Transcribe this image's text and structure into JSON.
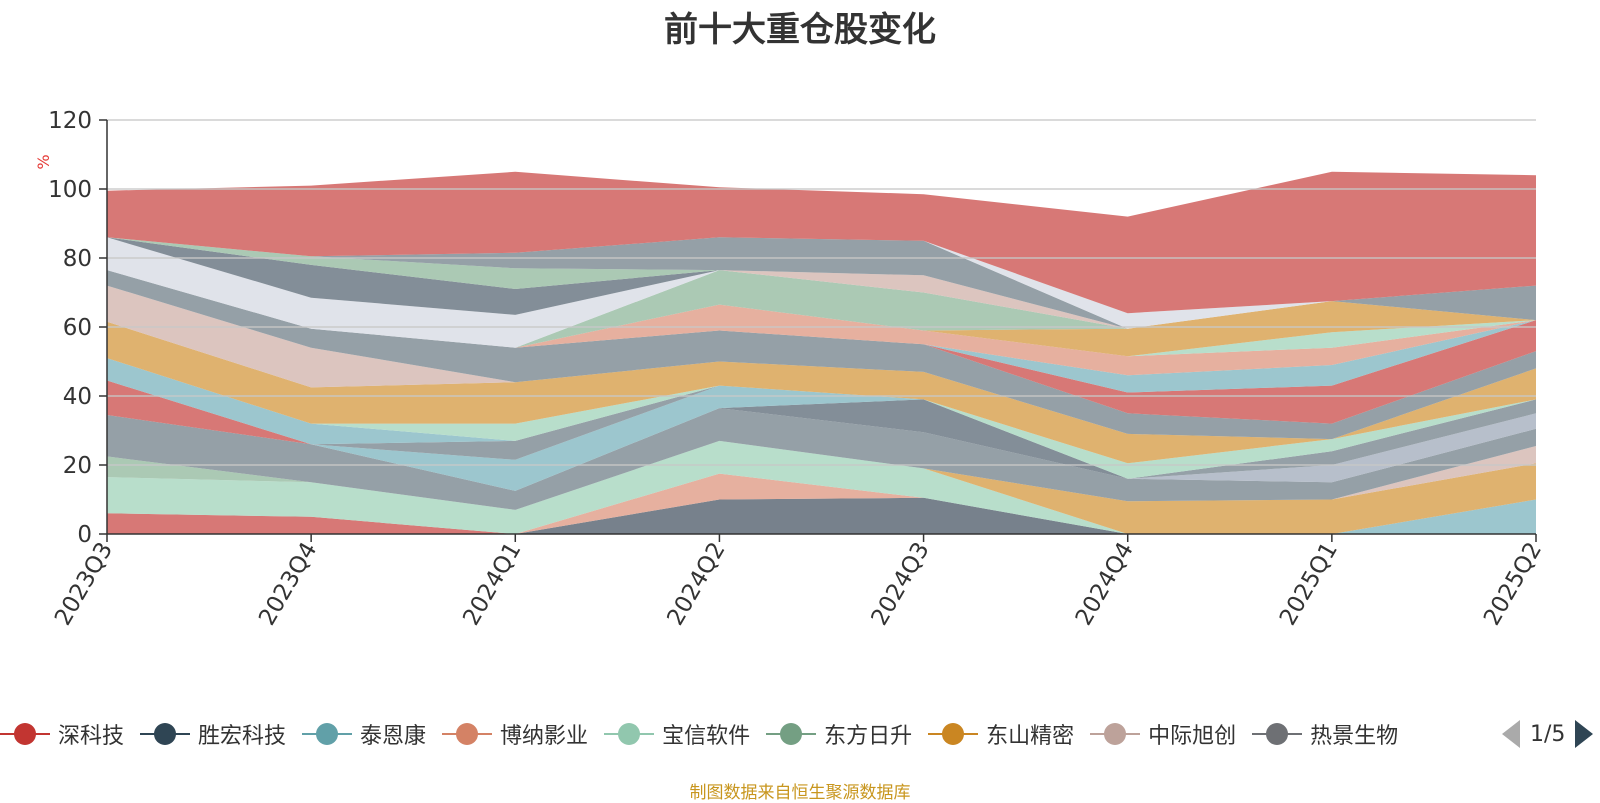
{
  "chart_data": {
    "type": "area",
    "stacked": true,
    "title": "前十大重仓股变化",
    "ylabel": "%",
    "ylim": [
      0,
      120
    ],
    "yticks": [
      0,
      20,
      40,
      60,
      80,
      100,
      120
    ],
    "grid": true,
    "legend_position": "bottom",
    "categories": [
      "2023Q3",
      "2023Q4",
      "2024Q1",
      "2024Q2",
      "2024Q3",
      "2024Q4",
      "2025Q1",
      "2025Q2"
    ],
    "series": [
      {
        "name": "深科技",
        "color": "#d0605e",
        "values": [
          6,
          5,
          0,
          0,
          0,
          0,
          0,
          0
        ]
      },
      {
        "name": "胜宏科技",
        "color": "#5f6b78",
        "values": [
          0,
          0,
          0,
          10,
          10.5,
          0,
          0,
          0
        ]
      },
      {
        "name": "泰恩康",
        "color": "#8bbcc6",
        "values": [
          0,
          0,
          0,
          0,
          0,
          0,
          0,
          10
        ]
      },
      {
        "name": "博纳影业",
        "color": "#e2a28e",
        "values": [
          0,
          0,
          0,
          7.5,
          0,
          0,
          0,
          0
        ]
      },
      {
        "name": "宝信软件",
        "color": "#abd8c2",
        "values": [
          10.5,
          10,
          7,
          9.5,
          8.5,
          0,
          0,
          0
        ]
      },
      {
        "name": "东方日升",
        "color": "#9cbfa7",
        "values": [
          6,
          0,
          0,
          0,
          0,
          0,
          0,
          0
        ]
      },
      {
        "name": "东山精密",
        "color": "#d9a556",
        "values": [
          0,
          0,
          0,
          0,
          0,
          9.5,
          10,
          10.5
        ]
      },
      {
        "name": "中际旭创",
        "color": "#d6bbb4",
        "values": [
          0,
          0,
          0,
          0,
          0,
          0,
          0,
          5
        ]
      },
      {
        "name": "热景生物",
        "color": "#838f98",
        "values": [
          12,
          11,
          5.5,
          9.5,
          10.5,
          6.5,
          5,
          5
        ]
      },
      {
        "name": "",
        "color": "#aab4c2",
        "values": [
          0,
          0,
          0,
          0,
          0,
          0,
          5,
          4.5
        ]
      },
      {
        "name": "",
        "color": "#6d7a86",
        "values": [
          0,
          0,
          0,
          0,
          9.5,
          0,
          0,
          0
        ]
      },
      {
        "name": "",
        "color": "#8bbcc6",
        "values": [
          0,
          0,
          9,
          6.5,
          0,
          0,
          0,
          0
        ]
      },
      {
        "name": "",
        "color": "#d0605e",
        "values": [
          10,
          0,
          0,
          0,
          0,
          0,
          0,
          0
        ]
      },
      {
        "name": "",
        "color": "#838f98",
        "values": [
          0,
          0,
          5.5,
          0,
          0,
          0,
          4,
          4
        ]
      },
      {
        "name": "",
        "color": "#8bbcc6",
        "values": [
          6.5,
          6,
          0,
          0,
          0,
          0,
          0,
          0
        ]
      },
      {
        "name": "",
        "color": "#abd8c2",
        "values": [
          0,
          0,
          5,
          0,
          0,
          4.5,
          3.5,
          0
        ]
      },
      {
        "name": "",
        "color": "#d9a556",
        "values": [
          10.5,
          10.5,
          12,
          7,
          8,
          8.5,
          0,
          9
        ]
      },
      {
        "name": "",
        "color": "#d6bbb4",
        "values": [
          10.5,
          11.5,
          0,
          0,
          0,
          0,
          0,
          0
        ]
      },
      {
        "name": "",
        "color": "#838f98",
        "values": [
          4.5,
          5.5,
          10,
          9,
          8,
          6,
          4.5,
          5
        ]
      },
      {
        "name": "",
        "color": "#d0605e",
        "values": [
          0,
          0,
          0,
          0,
          0,
          6,
          11,
          9
        ]
      },
      {
        "name": "",
        "color": "#8bbcc6",
        "values": [
          0,
          0,
          0,
          0,
          0,
          5,
          6,
          0
        ]
      },
      {
        "name": "",
        "color": "#e2a28e",
        "values": [
          0,
          0,
          0,
          7.5,
          4,
          5.5,
          5,
          0
        ]
      },
      {
        "name": "",
        "color": "#abd8c2",
        "values": [
          0,
          0,
          0,
          0,
          0,
          0,
          4.5,
          0
        ]
      },
      {
        "name": "",
        "color": "#d9a556",
        "values": [
          0,
          0,
          0,
          0,
          0,
          8,
          9,
          0
        ]
      },
      {
        "name": "",
        "color": "#9cbfa7",
        "values": [
          0,
          0,
          0,
          10,
          11,
          0,
          0,
          0
        ]
      },
      {
        "name": "",
        "color": "#d6bbb4",
        "values": [
          0,
          0,
          0,
          0,
          5,
          0,
          0,
          0
        ]
      },
      {
        "name": "",
        "color": "#dadee6",
        "values": [
          9.5,
          9,
          9.5,
          0,
          0,
          0,
          0,
          0
        ]
      },
      {
        "name": "",
        "color": "#6d7a86",
        "values": [
          0,
          9.5,
          7.5,
          0,
          0,
          0,
          0,
          0
        ]
      },
      {
        "name": "",
        "color": "#9cbfa7",
        "values": [
          0,
          2.5,
          6,
          0,
          0,
          0,
          0,
          0
        ]
      },
      {
        "name": "",
        "color": "#838f98",
        "values": [
          0,
          0,
          4.5,
          9.5,
          10,
          0,
          0,
          10
        ]
      },
      {
        "name": "",
        "color": "#dadee6",
        "values": [
          0,
          0,
          0,
          0,
          0,
          4.5,
          0,
          0
        ]
      },
      {
        "name": "",
        "color": "#d0605e",
        "values": [
          13.5,
          20.5,
          23.5,
          14.5,
          13.5,
          28,
          37.5,
          32
        ]
      }
    ]
  },
  "legend": {
    "items": [
      {
        "label": "深科技",
        "color": "#c23531"
      },
      {
        "label": "胜宏科技",
        "color": "#2f4554"
      },
      {
        "label": "泰恩康",
        "color": "#61a0a8"
      },
      {
        "label": "博纳影业",
        "color": "#d48265"
      },
      {
        "label": "宝信软件",
        "color": "#91c7ae"
      },
      {
        "label": "东方日升",
        "color": "#749f83"
      },
      {
        "label": "东山精密",
        "color": "#ca8622"
      },
      {
        "label": "中际旭创",
        "color": "#bda29a"
      },
      {
        "label": "热景生物",
        "color": "#6e7074"
      }
    ],
    "page_text": "1/5"
  },
  "footer": {
    "source_note": "制图数据来自恒生聚源数据库"
  }
}
